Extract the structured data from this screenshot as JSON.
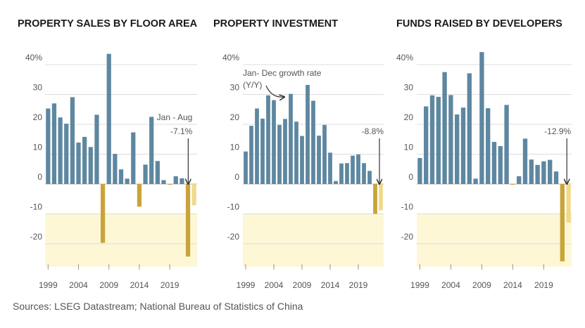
{
  "source": "Sources: LSEG Datastream; National Bureau of Statistics of China",
  "colors": {
    "positive": "#5e87a0",
    "negative": "#c9a43a",
    "partial_year": "#f0d98c",
    "grid": "#dddddd",
    "negative_zone": "#fdf7d6"
  },
  "chart_data": [
    {
      "type": "bar",
      "title": "PROPERTY SALES BY FLOOR AREA",
      "x_ticks": [
        "1999",
        "2004",
        "2009",
        "2014",
        "2019"
      ],
      "y_ticks": [
        "40%",
        "30",
        "20",
        "10",
        "0",
        "-10",
        "-20"
      ],
      "ylim": [
        -27,
        45
      ],
      "x": [
        1999,
        2000,
        2001,
        2002,
        2003,
        2004,
        2005,
        2006,
        2007,
        2008,
        2009,
        2010,
        2011,
        2012,
        2013,
        2014,
        2015,
        2016,
        2017,
        2018,
        2019,
        2020,
        2021,
        2022,
        2023
      ],
      "values": [
        25.3,
        27.0,
        22.3,
        20.2,
        29.1,
        13.9,
        15.8,
        12.4,
        23.2,
        -19.7,
        43.6,
        10.1,
        4.9,
        1.8,
        17.3,
        -7.6,
        6.5,
        22.5,
        7.7,
        1.3,
        -0.1,
        2.6,
        1.9,
        -24.3,
        -7.1
      ],
      "partial_year_index": 24,
      "annotation": {
        "line1": "Jan - Aug",
        "line2": "-7.1%"
      },
      "grid": true
    },
    {
      "type": "bar",
      "title": "PROPERTY INVESTMENT",
      "x_ticks": [
        "1999",
        "2004",
        "2009",
        "2014",
        "2019"
      ],
      "y_ticks": [
        "40%",
        "30",
        "20",
        "10",
        "0",
        "-10",
        "-20"
      ],
      "ylim": [
        -27,
        45
      ],
      "x": [
        1999,
        2000,
        2001,
        2002,
        2003,
        2004,
        2005,
        2006,
        2007,
        2008,
        2009,
        2010,
        2011,
        2012,
        2013,
        2014,
        2015,
        2016,
        2017,
        2018,
        2019,
        2020,
        2021,
        2022,
        2023
      ],
      "values": [
        10.9,
        19.5,
        25.3,
        21.9,
        29.7,
        28.1,
        19.8,
        21.8,
        30.2,
        20.9,
        16.1,
        33.2,
        27.9,
        16.2,
        19.8,
        10.5,
        1.0,
        6.9,
        7.0,
        9.5,
        9.9,
        7.0,
        4.4,
        -10.0,
        -8.8
      ],
      "partial_year_index": 24,
      "annotation": {
        "line1": "-8.8%"
      },
      "note": {
        "line1": "Jan- Dec growth rate",
        "line2": "(Y/Y)"
      },
      "grid": true
    },
    {
      "type": "bar",
      "title": "FUNDS RAISED BY DEVELOPERS",
      "x_ticks": [
        "1999",
        "2004",
        "2009",
        "2014",
        "2019"
      ],
      "y_ticks": [
        "40%",
        "30",
        "20",
        "10",
        "0",
        "-10",
        "-20"
      ],
      "ylim": [
        -27,
        45
      ],
      "x": [
        1999,
        2000,
        2001,
        2002,
        2003,
        2004,
        2005,
        2006,
        2007,
        2008,
        2009,
        2010,
        2011,
        2012,
        2013,
        2014,
        2015,
        2016,
        2017,
        2018,
        2019,
        2020,
        2021,
        2022,
        2023
      ],
      "values": [
        8.7,
        26.0,
        29.7,
        29.2,
        37.5,
        29.8,
        23.3,
        25.6,
        37.1,
        1.8,
        44.2,
        25.4,
        14.1,
        12.7,
        26.5,
        -0.1,
        2.6,
        15.2,
        8.2,
        6.4,
        7.6,
        8.1,
        4.2,
        -25.9,
        -12.9
      ],
      "partial_year_index": 24,
      "annotation": {
        "line1": "-12.9%"
      },
      "grid": true
    }
  ]
}
